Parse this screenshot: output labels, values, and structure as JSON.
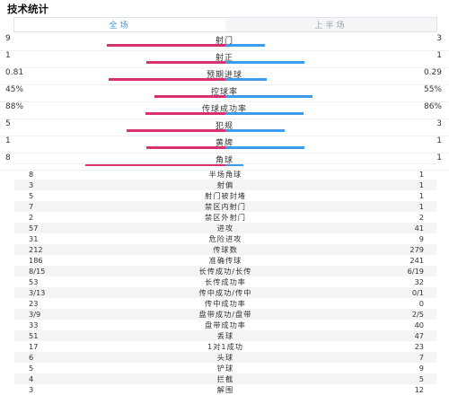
{
  "header": {
    "title": "技术统计"
  },
  "tabs": [
    {
      "label": "全场",
      "active": true
    },
    {
      "label": "上半场",
      "active": false
    }
  ],
  "colors": {
    "home": "#d8316f",
    "away": "#3d9be9"
  },
  "bar_stats": [
    {
      "label": "射门",
      "home": "9",
      "away": "3",
      "home_share": 0.75,
      "away_share": 0.25
    },
    {
      "label": "射正",
      "home": "1",
      "away": "1",
      "home_share": 0.5,
      "away_share": 0.5
    },
    {
      "label": "预期进球",
      "home": "0.81",
      "away": "0.29",
      "home_share": 0.736,
      "away_share": 0.264
    },
    {
      "label": "控球率",
      "home": "45%",
      "away": "55%",
      "home_share": 0.45,
      "away_share": 0.55
    },
    {
      "label": "传球成功率",
      "home": "88%",
      "away": "86%",
      "home_share": 0.506,
      "away_share": 0.494
    },
    {
      "label": "犯规",
      "home": "5",
      "away": "3",
      "home_share": 0.625,
      "away_share": 0.375
    },
    {
      "label": "黄牌",
      "home": "1",
      "away": "1",
      "home_share": 0.5,
      "away_share": 0.5
    },
    {
      "label": "角球",
      "home": "8",
      "away": "1",
      "home_share": 0.889,
      "away_share": 0.111
    }
  ],
  "list_stats": [
    {
      "label": "半场角球",
      "home": "8",
      "away": "1"
    },
    {
      "label": "射偏",
      "home": "3",
      "away": "1"
    },
    {
      "label": "射门被封堵",
      "home": "5",
      "away": "1"
    },
    {
      "label": "禁区内射门",
      "home": "7",
      "away": "1"
    },
    {
      "label": "禁区外射门",
      "home": "2",
      "away": "2"
    },
    {
      "label": "进攻",
      "home": "57",
      "away": "41"
    },
    {
      "label": "危险进攻",
      "home": "31",
      "away": "9"
    },
    {
      "label": "传球数",
      "home": "212",
      "away": "279"
    },
    {
      "label": "准确传球",
      "home": "186",
      "away": "241"
    },
    {
      "label": "长传成功/长传",
      "home": "8/15",
      "away": "6/19"
    },
    {
      "label": "长传成功率",
      "home": "53",
      "away": "32"
    },
    {
      "label": "传中成功/传中",
      "home": "3/13",
      "away": "0/1"
    },
    {
      "label": "传中成功率",
      "home": "23",
      "away": "0"
    },
    {
      "label": "盘带成功/盘带",
      "home": "3/9",
      "away": "2/5"
    },
    {
      "label": "盘带成功率",
      "home": "33",
      "away": "40"
    },
    {
      "label": "丢球",
      "home": "51",
      "away": "47"
    },
    {
      "label": "1对1成功",
      "home": "17",
      "away": "23"
    },
    {
      "label": "头球",
      "home": "6",
      "away": "7"
    },
    {
      "label": "铲球",
      "home": "5",
      "away": "9"
    },
    {
      "label": "拦截",
      "home": "4",
      "away": "5"
    },
    {
      "label": "解围",
      "home": "3",
      "away": "12"
    }
  ]
}
